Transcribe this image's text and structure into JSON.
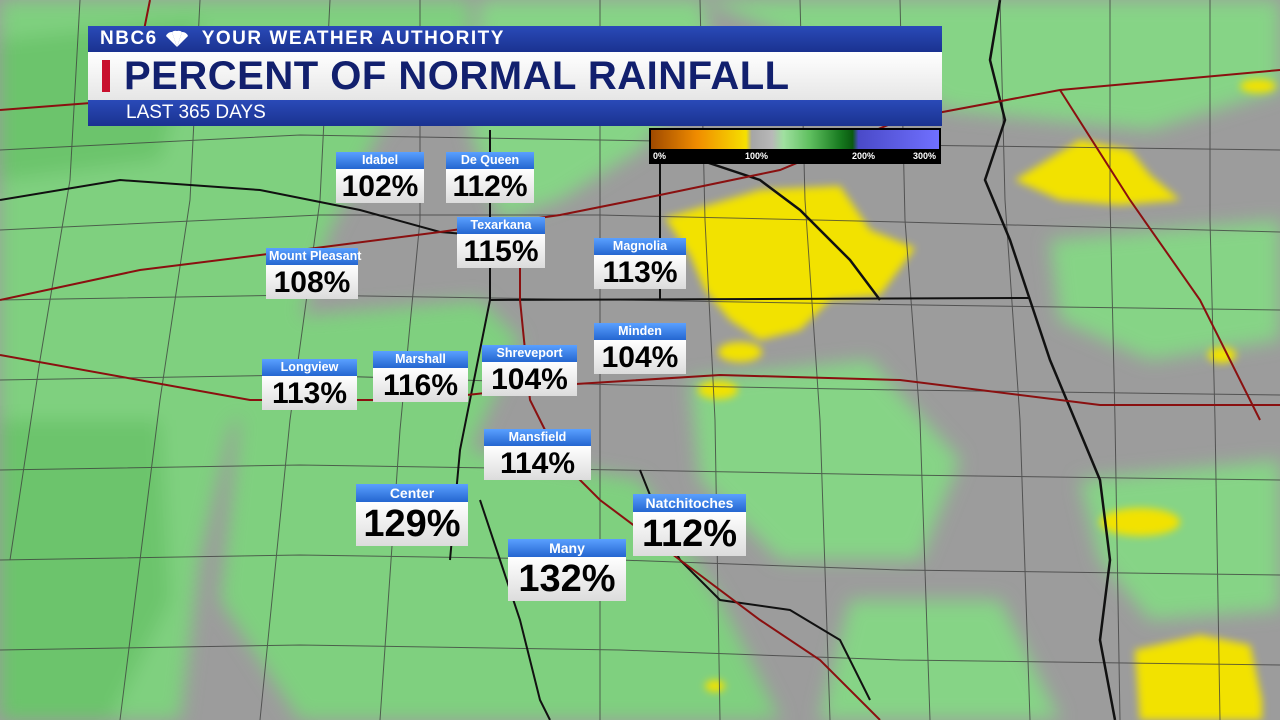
{
  "header": {
    "brand": "NBC6",
    "brand_logo_icon": "peacock-icon",
    "tagline": "YOUR WEATHER AUTHORITY",
    "title": "PERCENT OF NORMAL RAINFALL",
    "subtitle": "LAST 365 DAYS"
  },
  "legend": {
    "labels": [
      "0%",
      "100%",
      "200%",
      "300%"
    ],
    "colors": {
      "low": "#f08c00",
      "dry": "#f6e000",
      "normal": "#a6a6a6",
      "wet": "#60c060",
      "very_wet": "#16781e",
      "extreme": "#7070ff"
    }
  },
  "cities": [
    {
      "name": "Idabel",
      "value": "102%"
    },
    {
      "name": "De Queen",
      "value": "112%"
    },
    {
      "name": "Texarkana",
      "value": "115%"
    },
    {
      "name": "Magnolia",
      "value": "113%"
    },
    {
      "name": "Mount Pleasant",
      "value": "108%"
    },
    {
      "name": "Minden",
      "value": "104%"
    },
    {
      "name": "Longview",
      "value": "113%"
    },
    {
      "name": "Marshall",
      "value": "116%"
    },
    {
      "name": "Shreveport",
      "value": "104%"
    },
    {
      "name": "Mansfield",
      "value": "114%"
    },
    {
      "name": "Center",
      "value": "129%"
    },
    {
      "name": "Natchitoches",
      "value": "112%"
    },
    {
      "name": "Many",
      "value": "132%"
    }
  ]
}
